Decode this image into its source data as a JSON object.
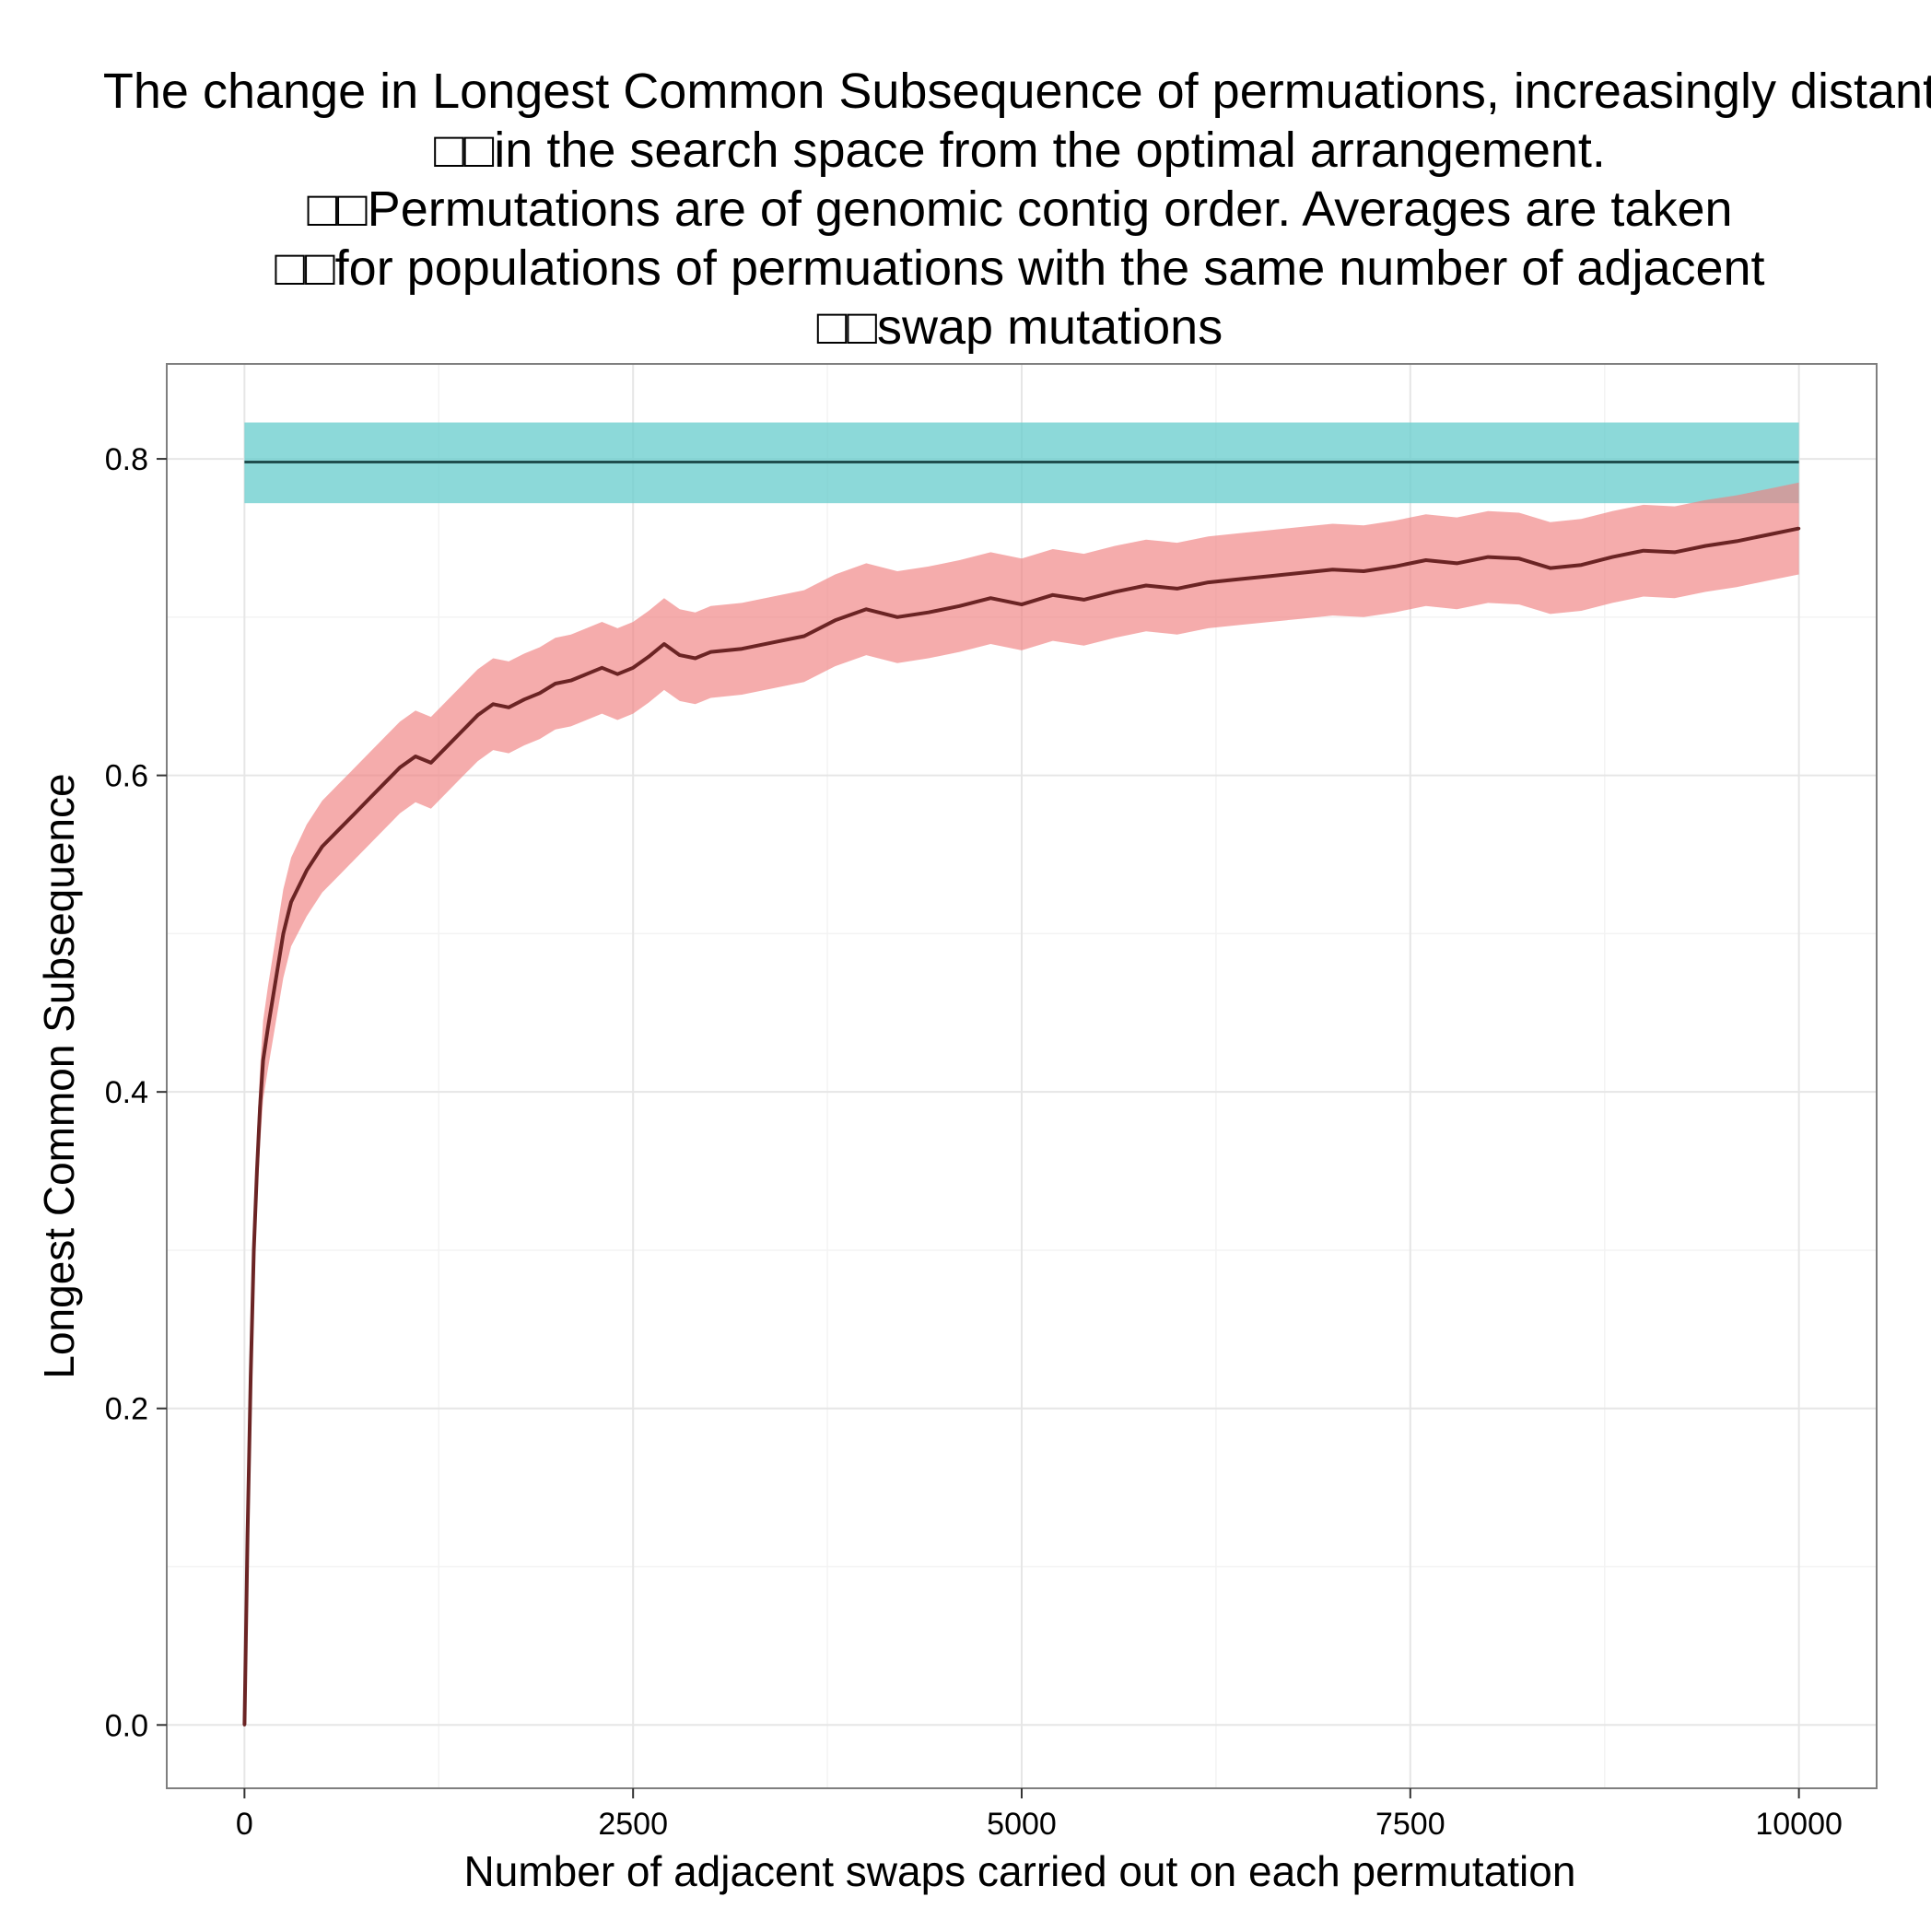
{
  "chart_data": {
    "type": "line",
    "title_lines": [
      "The change in Longest Common Subsequence of permuations, increasingly distant",
      "□□in the search space from the optimal arrangement.",
      "□□Permutations are of genomic contig order. Averages are taken",
      "□□for populations of permuations with the same number of adjacent",
      "□□swap mutations"
    ],
    "xlabel": "Number of adjacent swaps carried out on each permutation",
    "ylabel": "Longest Common Subsequence",
    "xlim": [
      -500,
      10500
    ],
    "ylim": [
      -0.04,
      0.86
    ],
    "x_ticks": [
      0,
      2500,
      5000,
      7500,
      10000
    ],
    "x_tick_labels": [
      "0",
      "2500",
      "5000",
      "7500",
      "10000"
    ],
    "y_ticks": [
      0.0,
      0.2,
      0.4,
      0.6,
      0.8
    ],
    "y_tick_labels": [
      "0.0",
      "0.2",
      "0.4",
      "0.6",
      "0.8"
    ],
    "grid": true,
    "colors": {
      "panel_border": "#7f7f7f",
      "grid_major": "#e6e6e6",
      "grid_minor": "#f3f3f3",
      "reference_band": "#66cccc",
      "reference_line": "#1f4e4e",
      "ribbon": "#f08080",
      "mean_line": "#6b2424"
    },
    "series": [
      {
        "role": "reference",
        "x_range": [
          0,
          10000
        ],
        "value": 0.798,
        "band": [
          0.772,
          0.823
        ]
      },
      {
        "role": "mean",
        "x": [
          0,
          20,
          40,
          60,
          80,
          100,
          120,
          150,
          200,
          250,
          300,
          400,
          500,
          600,
          700,
          800,
          900,
          1000,
          1100,
          1200,
          1300,
          1400,
          1500,
          1600,
          1700,
          1800,
          1900,
          2000,
          2100,
          2200,
          2300,
          2400,
          2500,
          2600,
          2700,
          2800,
          2900,
          3000,
          3200,
          3400,
          3600,
          3800,
          4000,
          4200,
          4400,
          4600,
          4800,
          5000,
          5200,
          5400,
          5600,
          5800,
          6000,
          6200,
          6400,
          6600,
          6800,
          7000,
          7200,
          7400,
          7600,
          7800,
          8000,
          8200,
          8400,
          8600,
          8800,
          9000,
          9200,
          9400,
          9600,
          9800,
          10000
        ],
        "values": [
          0.0,
          0.12,
          0.22,
          0.3,
          0.35,
          0.39,
          0.42,
          0.44,
          0.47,
          0.5,
          0.52,
          0.54,
          0.555,
          0.565,
          0.575,
          0.585,
          0.595,
          0.605,
          0.612,
          0.608,
          0.618,
          0.628,
          0.638,
          0.645,
          0.643,
          0.648,
          0.652,
          0.658,
          0.66,
          0.664,
          0.668,
          0.664,
          0.668,
          0.675,
          0.683,
          0.676,
          0.674,
          0.678,
          0.68,
          0.684,
          0.688,
          0.698,
          0.705,
          0.7,
          0.703,
          0.707,
          0.712,
          0.708,
          0.714,
          0.711,
          0.716,
          0.72,
          0.718,
          0.722,
          0.724,
          0.726,
          0.728,
          0.73,
          0.729,
          0.732,
          0.736,
          0.734,
          0.738,
          0.737,
          0.731,
          0.733,
          0.738,
          0.742,
          0.741,
          0.745,
          0.748,
          0.752,
          0.756
        ],
        "band_halfwidth": [
          0.0,
          0.01,
          0.015,
          0.02,
          0.022,
          0.024,
          0.025,
          0.026,
          0.027,
          0.028,
          0.028,
          0.029,
          0.029,
          0.029,
          0.029,
          0.029,
          0.029,
          0.029,
          0.029,
          0.029,
          0.029,
          0.029,
          0.029,
          0.029,
          0.029,
          0.029,
          0.029,
          0.029,
          0.029,
          0.029,
          0.029,
          0.029,
          0.029,
          0.029,
          0.029,
          0.029,
          0.029,
          0.029,
          0.029,
          0.029,
          0.029,
          0.029,
          0.029,
          0.029,
          0.029,
          0.029,
          0.029,
          0.029,
          0.029,
          0.029,
          0.029,
          0.029,
          0.029,
          0.029,
          0.029,
          0.029,
          0.029,
          0.029,
          0.029,
          0.029,
          0.029,
          0.029,
          0.029,
          0.029,
          0.029,
          0.029,
          0.029,
          0.029,
          0.029,
          0.029,
          0.029,
          0.029,
          0.029
        ]
      }
    ]
  }
}
